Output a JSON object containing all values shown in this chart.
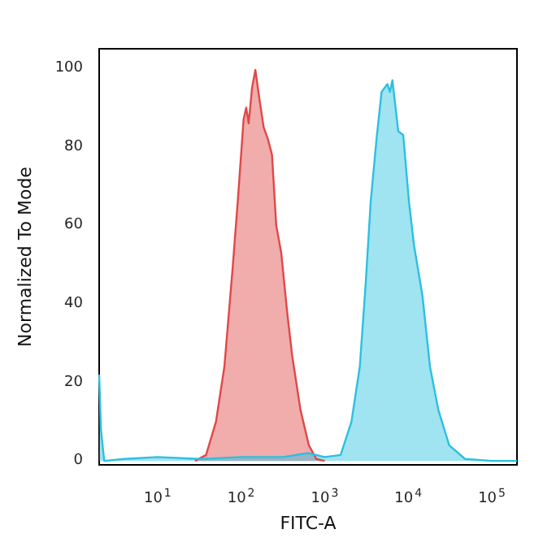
{
  "chart_data": {
    "type": "area",
    "xlabel": "FITC-A",
    "ylabel": "Normalized To Mode",
    "log": "x",
    "xlim": [
      2,
      200000
    ],
    "xticks": [
      {
        "value": 10,
        "label": "10$^{1}$"
      },
      {
        "value": 100,
        "label": "10$^{2}$"
      },
      {
        "value": 1000,
        "label": "10$^{3}$"
      },
      {
        "value": 10000,
        "label": "10$^{4}$"
      },
      {
        "value": 100000,
        "label": "10$^{5}$"
      }
    ],
    "ylim": [
      -1,
      105
    ],
    "yticks": [
      0,
      20,
      40,
      60,
      80,
      100
    ],
    "marker": "none",
    "series": [
      {
        "color": "#e04848",
        "x": [
          28,
          38,
          50,
          63,
          79,
          91,
          107,
          115,
          123,
          135,
          148,
          166,
          186,
          209,
          234,
          263,
          302,
          355,
          407,
          513,
          646,
          794,
          1000
        ],
        "values": [
          0,
          1.5,
          10,
          24,
          49,
          66,
          87,
          90,
          86,
          95,
          99.6,
          92,
          85,
          82,
          78,
          60,
          53,
          38,
          27,
          13,
          4,
          0.5,
          0
        ]
      },
      {
        "color": "#2cc0e0",
        "x": [
          2,
          2.1,
          2.3,
          4,
          10,
          32,
          100,
          316,
          631,
          1000,
          1550,
          2090,
          2630,
          3090,
          3550,
          4170,
          4790,
          5620,
          6030,
          6460,
          7590,
          8710,
          10200,
          11700,
          14800,
          18200,
          22900,
          30900,
          47900,
          100000,
          200000
        ],
        "values": [
          22,
          8,
          0,
          0.5,
          1,
          0.5,
          1,
          1,
          2,
          1,
          1.5,
          10,
          24,
          45,
          66,
          82,
          94,
          96,
          94,
          97,
          84,
          83,
          66,
          55,
          42,
          24,
          13,
          4,
          0.5,
          0,
          0
        ]
      }
    ]
  }
}
